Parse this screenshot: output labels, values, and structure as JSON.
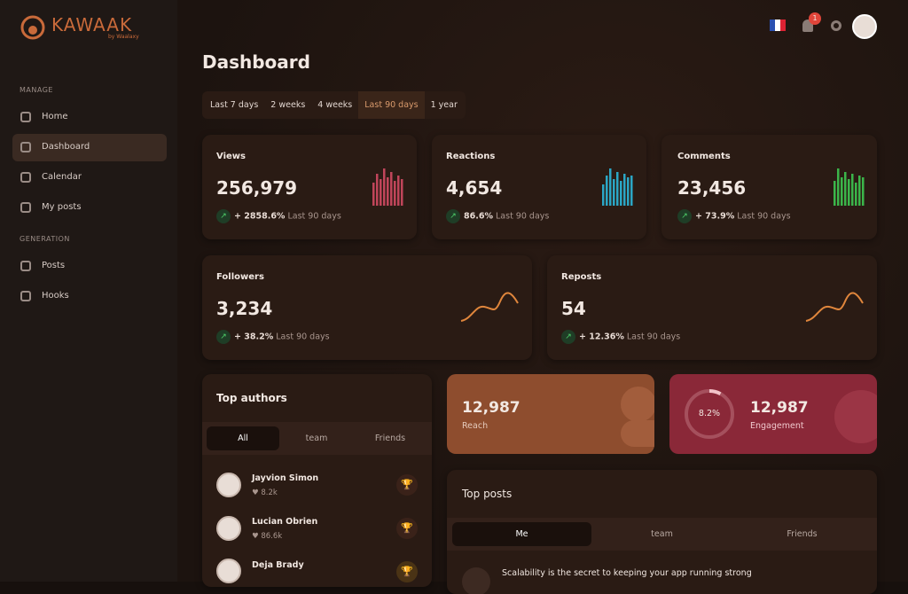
{
  "brand": {
    "name": "KAWAAK",
    "tagline": "by Waalaxy"
  },
  "header": {
    "notifications": 1
  },
  "sidebar": {
    "sections": [
      {
        "title": "MANAGE",
        "items": [
          "Home",
          "Dashboard",
          "Calendar",
          "My posts"
        ]
      },
      {
        "title": "GENERATION",
        "items": [
          "Posts",
          "Hooks"
        ]
      }
    ]
  },
  "page": {
    "title": "Dashboard",
    "ranges": [
      "Last 7 days",
      "2 weeks",
      "4 weeks",
      "Last 90 days",
      "1 year"
    ]
  },
  "stats": [
    {
      "label": "Views",
      "value": "256,979",
      "change": "+ 2858.6%",
      "period": "Last 90 days"
    },
    {
      "label": "Reactions",
      "value": "4,654",
      "change": "86.6%",
      "period": "Last 90 days"
    },
    {
      "label": "Comments",
      "value": "23,456",
      "change": "+ 73.9%",
      "period": "Last 90 days"
    },
    {
      "label": "Followers",
      "value": "3,234",
      "change": "+ 38.2%",
      "period": "Last 90 days"
    },
    {
      "label": "Reposts",
      "value": "54",
      "change": "+ 12.36%",
      "period": "Last 90 days"
    }
  ],
  "reach": {
    "value": "12,987",
    "label": "Reach"
  },
  "engagement": {
    "percent": "8.2%",
    "value": "12,987",
    "label": "Engagement"
  },
  "top_authors": {
    "title": "Top authors",
    "tabs": [
      "All",
      "team",
      "Friends"
    ],
    "authors": [
      {
        "name": "Jayvion Simon",
        "likes": "8.2k"
      },
      {
        "name": "Lucian Obrien",
        "likes": "86.6k"
      },
      {
        "name": "Deja Brady"
      }
    ]
  },
  "top_posts": {
    "title": "Top posts",
    "tabs": [
      "Me",
      "team",
      "Friends"
    ],
    "posts": [
      "Scalability is the secret to keeping your app running strong"
    ]
  }
}
